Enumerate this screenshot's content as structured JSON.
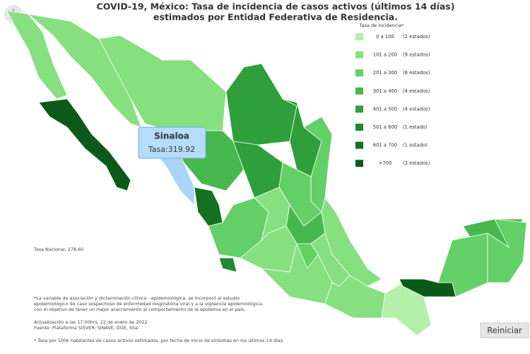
{
  "header": {
    "title": "COVID-19, México: Tasa de incidencia de casos activos (últimos 14 días)",
    "subtitle": "estimados por Entidad Federativa de Residencia."
  },
  "legend": {
    "title": "Tasa de incidencia*",
    "items": [
      {
        "range": "0 a 100",
        "count": "(2 estados)",
        "color": "#b4f0a9"
      },
      {
        "range": "101 a 200",
        "count": "(9 estados)",
        "color": "#86e080"
      },
      {
        "range": "201 a 300",
        "count": "(8 estados)",
        "color": "#62d066"
      },
      {
        "range": "301 a 400",
        "count": "(4 estados)",
        "color": "#46b84d"
      },
      {
        "range": "401 a 500",
        "count": "(4 estados)",
        "color": "#2f9f3b"
      },
      {
        "range": "501 a 600",
        "count": "(1 estado)",
        "color": "#20892d"
      },
      {
        "range": "601 a 700",
        "count": "(1 estado)",
        "color": "#147122"
      },
      {
        "range": ">700",
        "count": "(3 estados)",
        "color": "#0c5a19"
      }
    ]
  },
  "tooltip": {
    "state": "Sinaloa",
    "rate": "Tasa:319.92"
  },
  "national_rate": "Tasa Nacional: 278.60",
  "notes": [
    "*La variable de asociación y dictaminación clínica - epidemiológica, se incorporó al estudio",
    "epidemiológico de caso sospechoso de enfermedad respiratoria viral y a la vigilancia epidemiológica,",
    "con el objetivo de tener un mejor acercamiento al comportamiento de la epidemia en el país."
  ],
  "update": [
    "Actualización a las 17:00hrs, 22 de enero de 2022",
    "Fuente: Plataforma SISVER, SINAVE, DGE, SSa."
  ],
  "footnote": "* Tasa por 100k habitantes de casos activos estimados, por fecha de inicio de síntomas en los últimos 14 días.",
  "reset_button": "Reiniciar"
}
